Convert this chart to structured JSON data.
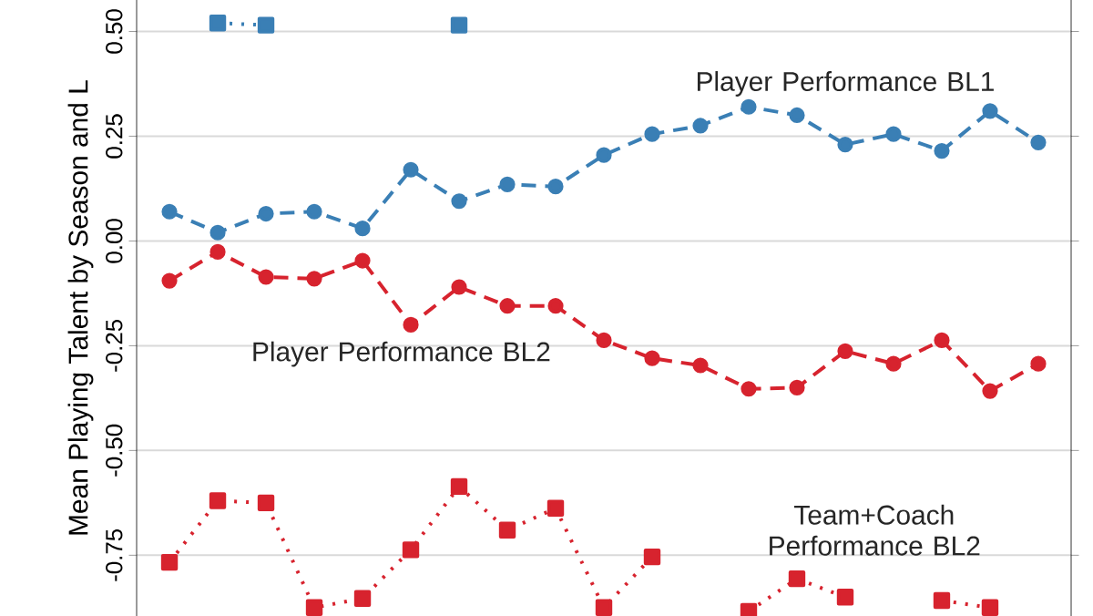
{
  "chart_data": {
    "type": "line",
    "ylabel": "Mean Playing Talent by Season and L",
    "categories": [
      null,
      null,
      null,
      null,
      null,
      null,
      null,
      null,
      null,
      null,
      null,
      null,
      null,
      null,
      null,
      null,
      null,
      null,
      null
    ],
    "series": [
      {
        "name": "Player Performance BL1",
        "color": "#3a7fb5",
        "marker": "circle",
        "line_style": "dashed",
        "values": [
          0.07,
          0.02,
          0.065,
          0.07,
          0.03,
          0.17,
          0.095,
          0.135,
          0.13,
          0.205,
          0.255,
          0.275,
          0.32,
          0.3,
          0.23,
          0.255,
          0.215,
          0.31,
          0.235
        ]
      },
      {
        "name": "Player Performance BL2",
        "color": "#d7232e",
        "marker": "circle",
        "line_style": "dashed",
        "values": [
          -0.095,
          -0.026,
          -0.086,
          -0.09,
          -0.047,
          -0.2,
          -0.11,
          -0.155,
          -0.155,
          -0.237,
          -0.28,
          -0.297,
          -0.353,
          -0.35,
          -0.263,
          -0.293,
          -0.237,
          -0.358,
          -0.293
        ]
      },
      {
        "color": "#3a7fb5",
        "marker": "square",
        "line_style": "dotted",
        "values": [
          null,
          0.52,
          0.515,
          null,
          null,
          null,
          0.515,
          null,
          null,
          null,
          null,
          null,
          null,
          null,
          null,
          null,
          null,
          null,
          null
        ]
      },
      {
        "name": "Team+Coach Performance BL2",
        "color": "#d7232e",
        "marker": "square",
        "line_style": "dotted",
        "values": [
          -0.767,
          -0.62,
          -0.625,
          -0.875,
          -0.853,
          -0.737,
          -0.586,
          -0.69,
          -0.638,
          -0.875,
          -0.754,
          null,
          -0.884,
          -0.806,
          -0.85,
          null,
          -0.858,
          -0.875,
          null
        ]
      }
    ],
    "ylim": [
      -0.895,
      0.575
    ],
    "yticks": [
      {
        "value": 0.5,
        "label": "0.50"
      },
      0.25,
      {
        "value": 0,
        "label": "0.00"
      },
      -0.25,
      {
        "value": -0.5,
        "label": "-0.50"
      },
      -0.75
    ],
    "grid": true,
    "legend": false
  }
}
